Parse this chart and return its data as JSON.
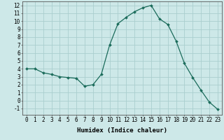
{
  "x": [
    0,
    1,
    2,
    3,
    4,
    5,
    6,
    7,
    8,
    9,
    10,
    11,
    12,
    13,
    14,
    15,
    16,
    17,
    18,
    19,
    20,
    21,
    22,
    23
  ],
  "y": [
    4.0,
    4.0,
    3.5,
    3.3,
    3.0,
    2.9,
    2.8,
    1.8,
    2.0,
    3.3,
    7.0,
    9.7,
    10.5,
    11.2,
    11.7,
    12.0,
    10.3,
    9.6,
    7.5,
    4.7,
    2.9,
    1.3,
    -0.2,
    -1.1
  ],
  "line_color": "#1a6b5a",
  "marker": "D",
  "markersize": 2.0,
  "bg_color": "#cde8e8",
  "grid_color": "#aacece",
  "xlabel": "Humidex (Indice chaleur)",
  "xlim": [
    -0.5,
    23.5
  ],
  "ylim": [
    -1.8,
    12.5
  ],
  "xtick_labels": [
    "0",
    "1",
    "2",
    "3",
    "4",
    "5",
    "6",
    "7",
    "8",
    "9",
    "10",
    "11",
    "12",
    "13",
    "14",
    "15",
    "16",
    "17",
    "18",
    "19",
    "20",
    "21",
    "22",
    "23"
  ],
  "ytick_values": [
    -1,
    0,
    1,
    2,
    3,
    4,
    5,
    6,
    7,
    8,
    9,
    10,
    11,
    12
  ],
  "xlabel_fontsize": 6.5,
  "tick_fontsize": 5.5
}
